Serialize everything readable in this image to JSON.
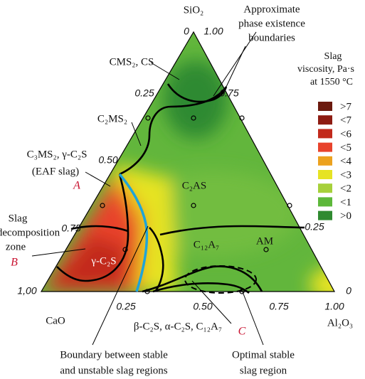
{
  "vertices": {
    "top": "SiO₂",
    "left": "CaO",
    "right": "Al₂O₃"
  },
  "ticks": {
    "top": [
      "0",
      "1.00"
    ],
    "left": [
      "0.25",
      "0.50",
      "0.75",
      "1,00"
    ],
    "right": [
      "0.75",
      "0.25",
      "0"
    ],
    "bottom": [
      "0.25",
      "0.50",
      "0.75",
      "1.00"
    ]
  },
  "regions": [
    "CMS₂, CS",
    "C₂MS₂",
    "C₃MS₂, γ-C₂S",
    "(EAF slag)",
    "C₂AS",
    "C₁₂A₇",
    "AM",
    "γ-C₂S",
    "β-C₂S, α-C₂S, C₁₂A₇"
  ],
  "markers": [
    "A",
    "B",
    "C"
  ],
  "annotations": {
    "phase_boundaries": [
      "Approximate",
      "phase existence",
      "boundaries"
    ],
    "decomposition": [
      "Slag",
      "decomposition",
      "zone"
    ],
    "stable_boundary": [
      "Boundary between stable",
      "and unstable slag regions"
    ],
    "optimal": [
      "Optimal stable",
      "slag region"
    ]
  },
  "legend": {
    "title": [
      "Slag",
      "viscosity, Pa·s",
      "at 1550 °C"
    ],
    "items": [
      {
        "label": ">7",
        "color": "#6b1a0e"
      },
      {
        "label": "<7",
        "color": "#8e1c12"
      },
      {
        "label": "<6",
        "color": "#c22a1c"
      },
      {
        "label": "<5",
        "color": "#e8432c"
      },
      {
        "label": "<4",
        "color": "#eca21e"
      },
      {
        "label": "<3",
        "color": "#e6e324"
      },
      {
        "label": "<2",
        "color": "#a6d03a"
      },
      {
        "label": "<1",
        "color": "#5db83a"
      },
      {
        "label": ">0",
        "color": "#2f8a30"
      }
    ]
  }
}
